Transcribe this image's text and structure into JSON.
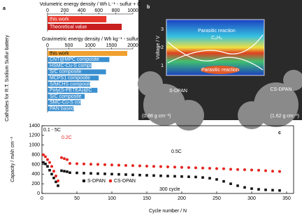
{
  "panel_labels": [
    "a",
    "b",
    "c"
  ],
  "chart_data": [
    {
      "type": "hbar",
      "title": "Volumetric energy density / Wh L⁻¹ - sulfur + C",
      "categories": [
        "this work",
        "Theoretical value"
      ],
      "values": [
        690,
        870
      ],
      "colors": [
        "#e8372b",
        "#c81e1e"
      ],
      "xlim": [
        0,
        1000
      ],
      "xticks": [
        0,
        200,
        400,
        600,
        800,
        1000
      ]
    },
    {
      "type": "hbar",
      "title": "Gravimetric energy density / Wh kg⁻¹ - sulfur",
      "ylabel": "Cathodes for R.T. Sodium Sulfur battery",
      "categories": [
        "this work",
        "CNT@MPC composite",
        "HSMC-Cu-S composite",
        "S/C composite",
        "MCPS1 composite",
        "S/MCHS composite",
        "Poly(S-PETEA)@C",
        "S/C composite",
        "SMC-Cu-S composite",
        "PAN based composite"
      ],
      "values": [
        1870,
        1450,
        1030,
        1370,
        1200,
        1000,
        1170,
        870,
        780,
        620
      ],
      "colors": [
        "#f0a030",
        "#3a8fd0",
        "#3a8fd0",
        "#3a8fd0",
        "#3a8fd0",
        "#3a8fd0",
        "#3a8fd0",
        "#3a8fd0",
        "#3a8fd0",
        "#3a8fd0"
      ],
      "xlim": [
        0,
        2000
      ],
      "xticks": [
        0,
        500,
        1000,
        1500,
        2000
      ]
    },
    {
      "type": "scatter",
      "xlabel": "Cycle number / N",
      "ylabel": "Capacity / mAh cm⁻³",
      "xlim": [
        0,
        360
      ],
      "ylim": [
        0,
        1400
      ],
      "xticks": [
        0,
        50,
        100,
        150,
        200,
        250,
        300,
        350
      ],
      "yticks": [
        0,
        200,
        400,
        600,
        800,
        1000,
        1200,
        1400
      ],
      "annotations": [
        "0.1 - 5C",
        "0.2C",
        "0.5C",
        "300 cycle"
      ],
      "series": [
        {
          "name": "S-DPAN",
          "color": "#111111",
          "x": [
            2,
            5,
            8,
            11,
            14,
            17,
            20,
            23,
            28,
            32,
            36,
            40,
            50,
            60,
            70,
            80,
            90,
            100,
            110,
            120,
            130,
            140,
            150,
            160,
            170,
            180,
            190,
            200,
            210,
            220,
            230,
            240,
            250,
            260,
            270,
            280,
            290,
            300,
            310,
            320,
            330,
            340
          ],
          "values": [
            640,
            610,
            560,
            480,
            400,
            320,
            240,
            160,
            470,
            460,
            450,
            430,
            425,
            420,
            415,
            410,
            405,
            400,
            395,
            390,
            385,
            380,
            375,
            370,
            365,
            360,
            355,
            350,
            345,
            340,
            330,
            315,
            290,
            250,
            200,
            160,
            125,
            100,
            85,
            75,
            68,
            62
          ]
        },
        {
          "name": "CS-DPAN",
          "color": "#e52520",
          "x": [
            2,
            5,
            8,
            11,
            14,
            17,
            20,
            23,
            28,
            32,
            36,
            40,
            50,
            60,
            70,
            80,
            90,
            100,
            110,
            120,
            130,
            140,
            150,
            160,
            170,
            180,
            190,
            200,
            210,
            220,
            230,
            240,
            250,
            260,
            270,
            280,
            290,
            300,
            310,
            320,
            330,
            340
          ],
          "values": [
            800,
            760,
            700,
            640,
            560,
            460,
            360,
            260,
            740,
            720,
            700,
            620,
            615,
            610,
            605,
            600,
            595,
            590,
            585,
            580,
            575,
            570,
            565,
            560,
            555,
            550,
            545,
            540,
            535,
            530,
            525,
            520,
            515,
            510,
            500,
            495,
            490,
            485,
            480,
            470,
            460,
            455
          ]
        }
      ]
    }
  ],
  "panel_b": {
    "inset_ylabel": "Voltage / V",
    "inset_yticks": [
      "3",
      "2",
      "1"
    ],
    "labels": [
      "Parasitic reaction",
      "C₆H₆",
      "Parasitic reaction",
      "S-DPAN",
      "CS-DPAN",
      "(0.88 g cm⁻³)",
      "(1.62 g cm⁻³)"
    ]
  }
}
